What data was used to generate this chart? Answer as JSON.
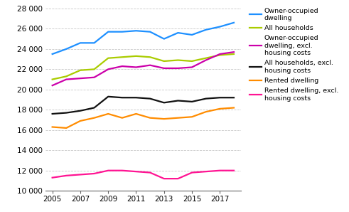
{
  "years": [
    2005,
    2006,
    2007,
    2008,
    2009,
    2010,
    2011,
    2012,
    2013,
    2014,
    2015,
    2016,
    2017,
    2018
  ],
  "series": [
    {
      "label": "Owner-occupied\ndwelling",
      "color": "#1E90FF",
      "values": [
        23500,
        24000,
        24600,
        24600,
        25700,
        25700,
        25800,
        25700,
        25000,
        25600,
        25400,
        25900,
        26200,
        26600
      ]
    },
    {
      "label": "All households",
      "color": "#AACC00",
      "values": [
        21000,
        21300,
        21900,
        22000,
        23100,
        23200,
        23300,
        23200,
        22800,
        22900,
        22800,
        23100,
        23400,
        23500
      ]
    },
    {
      "label": "Owner-occupied\ndwelling, excl.\nhousing costs",
      "color": "#CC00AA",
      "values": [
        20400,
        21000,
        21100,
        21200,
        22000,
        22300,
        22200,
        22400,
        22100,
        22100,
        22200,
        22900,
        23500,
        23700
      ]
    },
    {
      "label": "All households, excl.\nhousing costs",
      "color": "#111111",
      "values": [
        17600,
        17700,
        17900,
        18200,
        19300,
        19200,
        19200,
        19100,
        18700,
        18900,
        18800,
        19100,
        19200,
        19200
      ]
    },
    {
      "label": "Rented dwelling",
      "color": "#FF8C00",
      "values": [
        16300,
        16200,
        16900,
        17200,
        17600,
        17200,
        17600,
        17200,
        17100,
        17200,
        17300,
        17800,
        18100,
        18200
      ]
    },
    {
      "label": "Rented dwelling, excl.\nhousing costs",
      "color": "#FF1493",
      "values": [
        11300,
        11500,
        11600,
        11700,
        12000,
        12000,
        11900,
        11800,
        11200,
        11200,
        11800,
        11900,
        12000,
        12000
      ]
    }
  ],
  "xlim": [
    2004.5,
    2018.5
  ],
  "ylim": [
    10000,
    28000
  ],
  "yticks": [
    10000,
    12000,
    14000,
    16000,
    18000,
    20000,
    22000,
    24000,
    26000,
    28000
  ],
  "xticks": [
    2005,
    2007,
    2009,
    2011,
    2013,
    2015,
    2017
  ],
  "background_color": "#ffffff",
  "grid_color": "#c8c8c8",
  "line_width": 1.6
}
